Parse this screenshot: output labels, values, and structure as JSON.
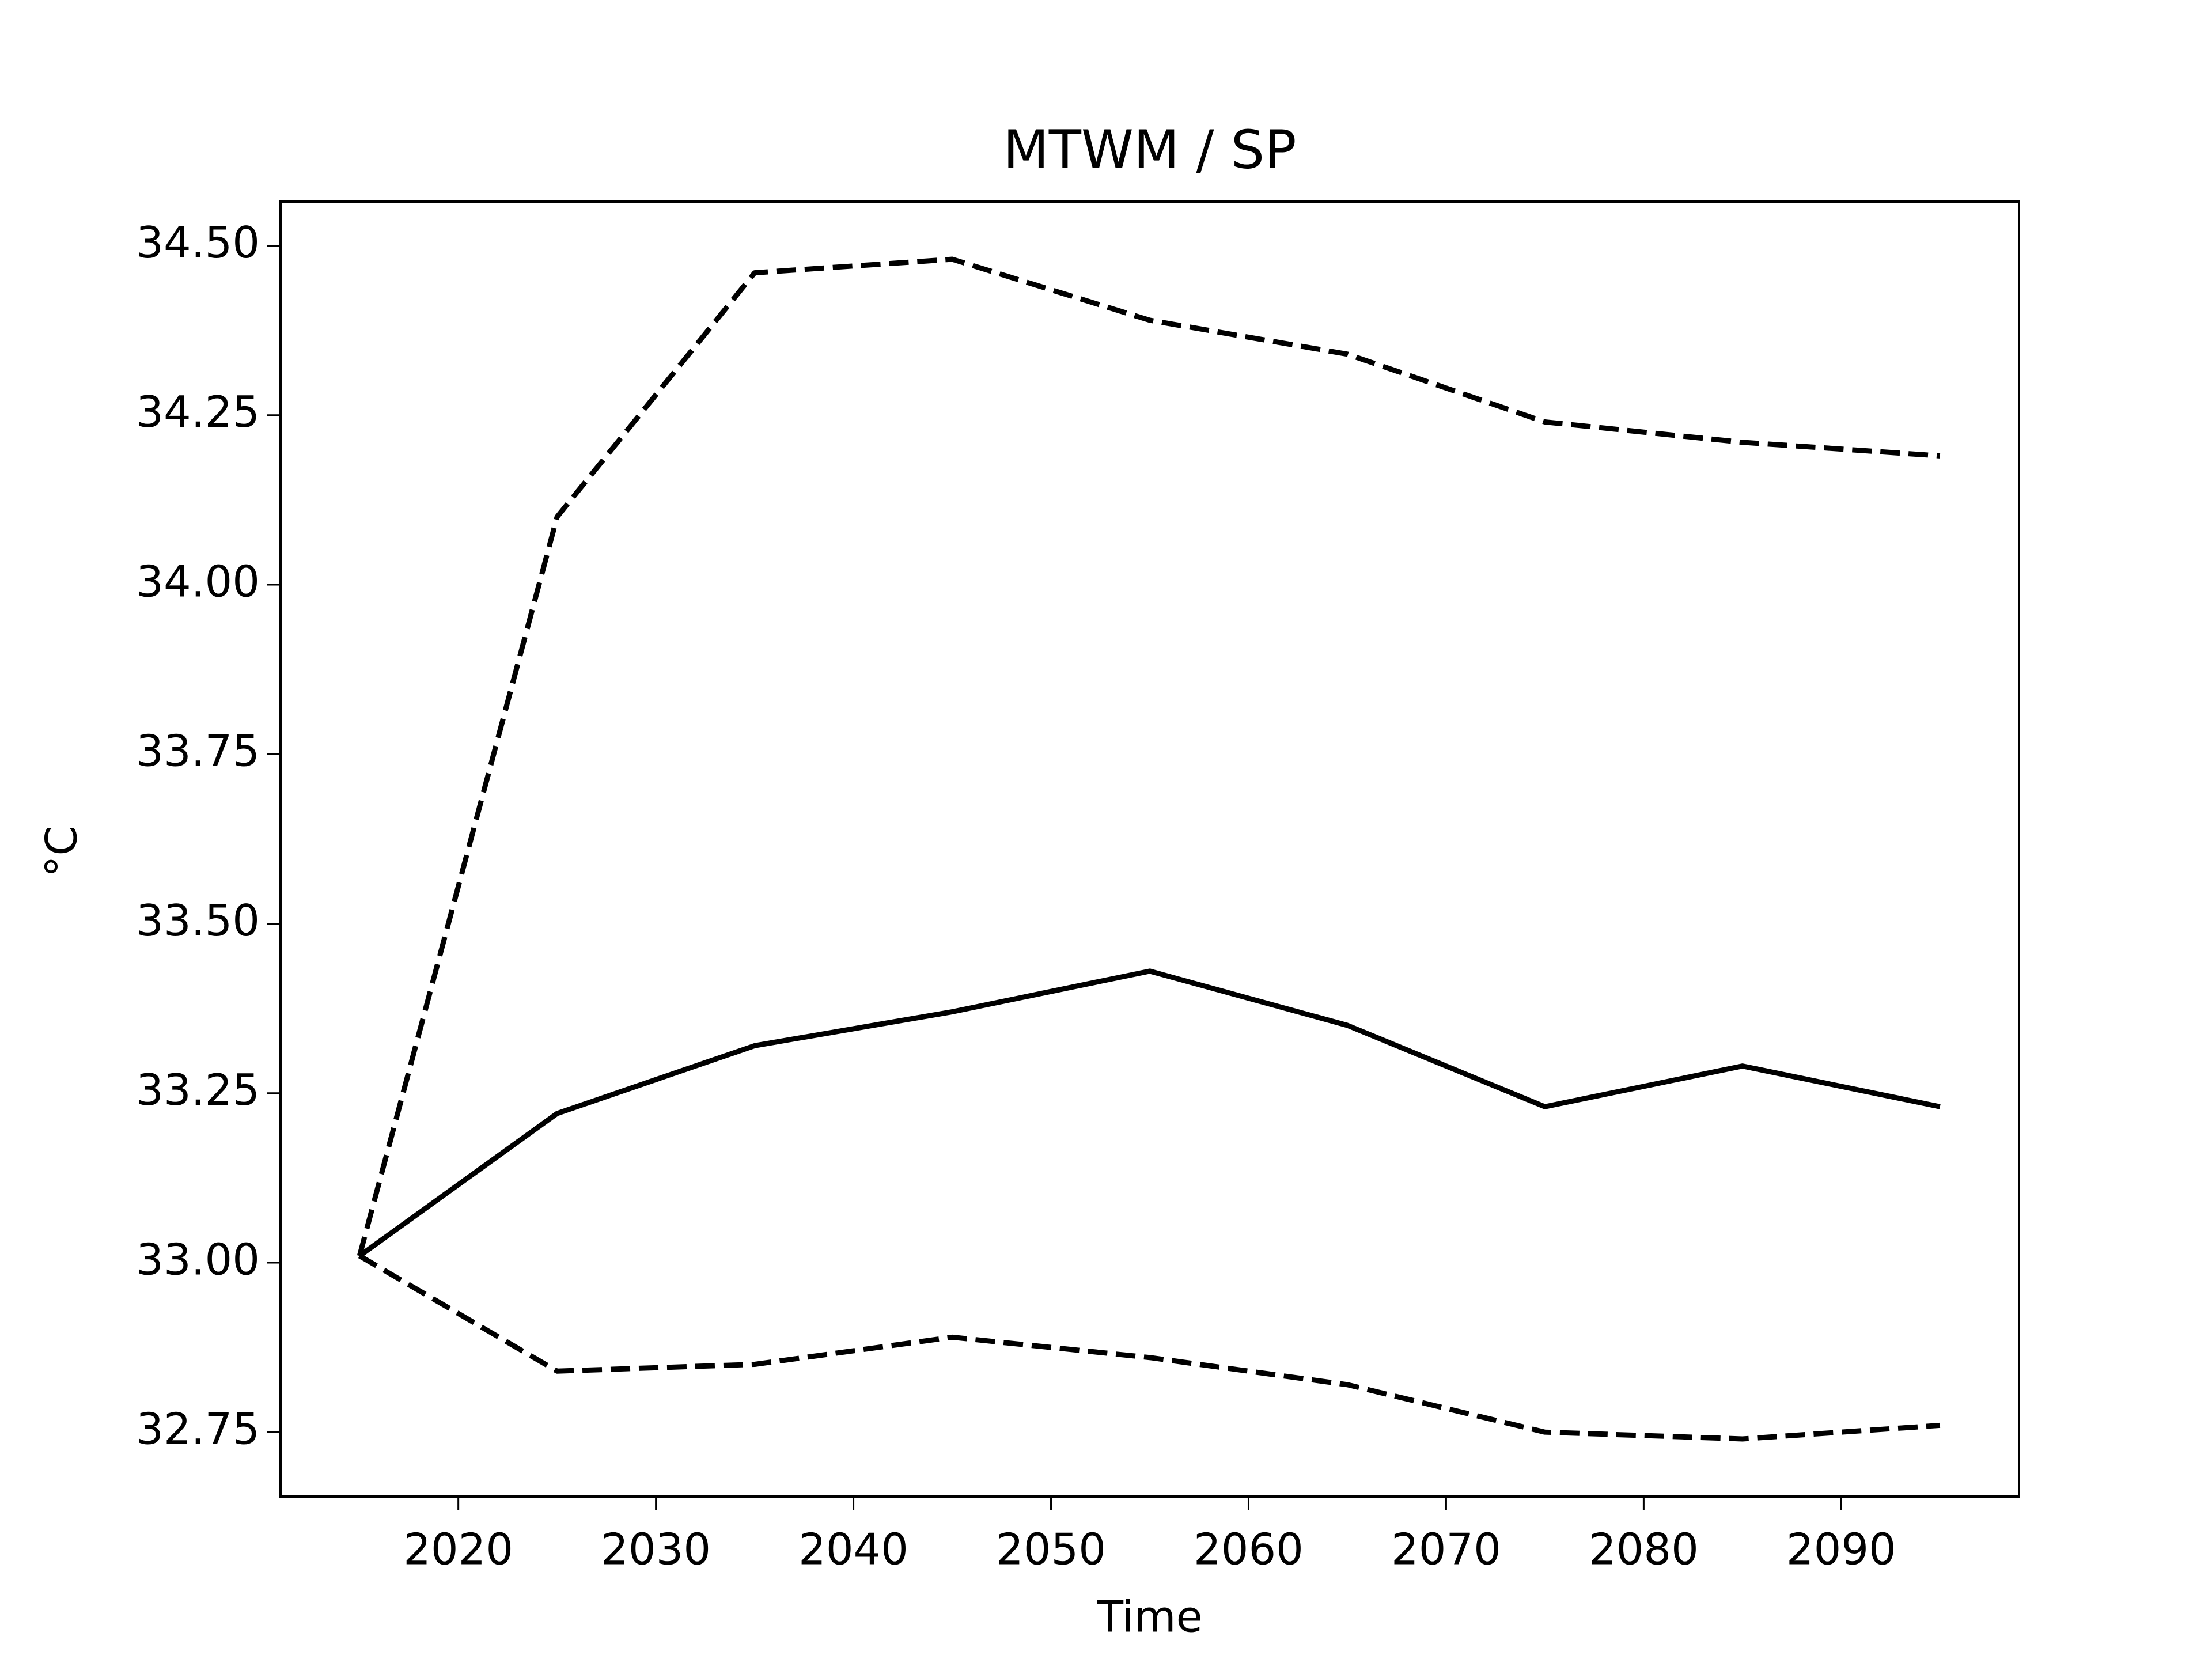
{
  "chart_data": {
    "type": "line",
    "title": "MTWM / SP",
    "x_label": "Time",
    "y_label": "°C",
    "x": [
      2015,
      2025,
      2035,
      2045,
      2055,
      2065,
      2075,
      2085,
      2095
    ],
    "series": [
      {
        "color": "#000000",
        "linestyle": "solid",
        "values": [
          33.01,
          33.22,
          33.32,
          33.37,
          33.43,
          33.35,
          33.23,
          33.29,
          33.23
        ]
      },
      {
        "color": "#000000",
        "linestyle": "dashed",
        "values": [
          33.01,
          34.1,
          34.46,
          34.48,
          34.39,
          34.34,
          34.24,
          34.21,
          34.19
        ]
      },
      {
        "color": "#000000",
        "linestyle": "dashed",
        "values": [
          33.01,
          32.84,
          32.85,
          32.89,
          32.86,
          32.82,
          32.75,
          32.74,
          32.76
        ]
      }
    ],
    "xlim": [
      2011,
      2099
    ],
    "xticks": [
      2020,
      2030,
      2040,
      2050,
      2060,
      2070,
      2080,
      2090
    ],
    "ylim": [
      32.655,
      34.565
    ],
    "yticks": [
      {
        "value": 32.75,
        "label": "32.75"
      },
      {
        "value": 33.0,
        "label": "33.00"
      },
      {
        "value": 33.25,
        "label": "33.25"
      },
      {
        "value": 33.5,
        "label": "33.50"
      },
      {
        "value": 33.75,
        "label": "33.75"
      },
      {
        "value": 34.0,
        "label": "34.00"
      },
      {
        "value": 34.25,
        "label": "34.25"
      },
      {
        "value": 34.5,
        "label": "34.50"
      }
    ],
    "grid": false
  }
}
